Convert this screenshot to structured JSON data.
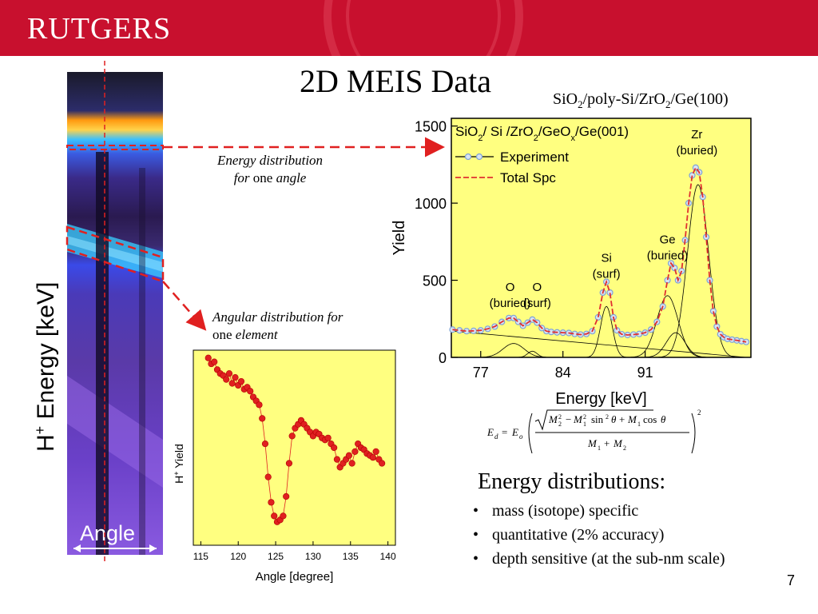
{
  "header": {
    "logo_text": "RUTGERS",
    "brand_color": "#c8102e"
  },
  "slide": {
    "title": "2D MEIS Data",
    "structure_parts": [
      "SiO",
      "2",
      "/poly-Si/ZrO",
      "2",
      "/Ge(100)"
    ],
    "page_number": "7"
  },
  "spectrum_image": {
    "ylabel_main": "H",
    "ylabel_sup": "+",
    "ylabel_rest": " Energy [keV]",
    "xlabel": "Angle"
  },
  "annotations": {
    "energy_line1": "Energy distribution",
    "energy_line2a": "for",
    "energy_line2b": " one ",
    "energy_line2c": "angle",
    "angular_line1": "Angular distribution for",
    "angular_line2a": "one ",
    "angular_line2b": "element"
  },
  "formula": {
    "lhs_sub": "d",
    "eo_sub": "o"
  },
  "energy_section": {
    "heading": "Energy distributions:",
    "bullets": [
      "mass (isotope) specific",
      "quantitative (2% accuracy)",
      "depth sensitive (at the sub-nm scale)"
    ]
  },
  "chart_data": [
    {
      "type": "line",
      "title_parts": [
        "SiO",
        "2",
        "/ Si /ZrO",
        "2",
        "/GeO",
        "x",
        "/Ge(001)"
      ],
      "xlabel": "Energy [keV]",
      "ylabel": "Yield",
      "xlim": [
        74.5,
        100
      ],
      "ylim": [
        0,
        1550
      ],
      "xticks": [
        77,
        84,
        91
      ],
      "yticks": [
        0,
        500,
        1000,
        1500
      ],
      "background": "#ffff80",
      "legend": {
        "position": "top-left",
        "entries": [
          "Experiment",
          "Total Spc"
        ]
      },
      "series": [
        {
          "name": "Experiment",
          "color": "#7fa3d6",
          "x": [
            74.6,
            75.2,
            75.8,
            76.4,
            77.0,
            77.6,
            78.2,
            78.8,
            79.4,
            79.8,
            80.2,
            80.6,
            81.0,
            81.4,
            81.8,
            82.2,
            82.6,
            83.0,
            83.5,
            84.0,
            84.5,
            85.0,
            85.5,
            86.0,
            86.5,
            87.0,
            87.4,
            87.7,
            88.0,
            88.3,
            88.6,
            89.0,
            89.5,
            90.0,
            90.5,
            91.0,
            91.5,
            92.0,
            92.5,
            92.9,
            93.2,
            93.5,
            93.8,
            94.1,
            94.4,
            94.7,
            95.0,
            95.3,
            95.6,
            95.9,
            96.2,
            96.5,
            96.8,
            97.1,
            97.4,
            97.7,
            98.0,
            98.4,
            98.8,
            99.2,
            99.6
          ],
          "y": [
            180,
            175,
            170,
            172,
            175,
            185,
            200,
            230,
            255,
            255,
            230,
            205,
            225,
            245,
            225,
            190,
            170,
            165,
            162,
            160,
            158,
            152,
            148,
            152,
            170,
            260,
            420,
            490,
            420,
            260,
            175,
            150,
            145,
            148,
            152,
            160,
            180,
            230,
            330,
            500,
            610,
            580,
            500,
            560,
            760,
            1000,
            1180,
            1230,
            1200,
            1040,
            780,
            500,
            300,
            200,
            150,
            130,
            120,
            115,
            110,
            105,
            100
          ]
        },
        {
          "name": "Total Spc",
          "color": "#e03030",
          "x": [
            74.6,
            75.2,
            75.8,
            76.4,
            77.0,
            77.6,
            78.2,
            78.8,
            79.4,
            79.8,
            80.2,
            80.6,
            81.0,
            81.4,
            81.8,
            82.2,
            82.6,
            83.0,
            83.5,
            84.0,
            84.5,
            85.0,
            85.5,
            86.0,
            86.5,
            87.0,
            87.4,
            87.7,
            88.0,
            88.3,
            88.6,
            89.0,
            89.5,
            90.0,
            90.5,
            91.0,
            91.5,
            92.0,
            92.5,
            92.9,
            93.2,
            93.5,
            93.8,
            94.1,
            94.4,
            94.7,
            95.0,
            95.3,
            95.6,
            95.9,
            96.2,
            96.5,
            96.8,
            97.1,
            97.4,
            97.7,
            98.0,
            98.4,
            98.8,
            99.2,
            99.6
          ],
          "y": [
            180,
            175,
            170,
            172,
            175,
            185,
            200,
            230,
            255,
            255,
            230,
            205,
            225,
            245,
            225,
            190,
            170,
            165,
            162,
            160,
            158,
            152,
            148,
            152,
            170,
            260,
            420,
            490,
            420,
            260,
            175,
            150,
            145,
            148,
            152,
            160,
            180,
            230,
            330,
            500,
            610,
            580,
            500,
            560,
            760,
            1000,
            1180,
            1230,
            1200,
            1040,
            780,
            500,
            300,
            200,
            150,
            130,
            120,
            115,
            110,
            105,
            100
          ]
        }
      ],
      "peak_labels": [
        {
          "lines": [
            "O",
            "(buried)"
          ],
          "x": 79.5,
          "y": 430
        },
        {
          "lines": [
            "O",
            "(surf)"
          ],
          "x": 81.8,
          "y": 430
        },
        {
          "lines": [
            "Si",
            "(surf)"
          ],
          "x": 87.7,
          "y": 620
        },
        {
          "lines": [
            "Ge",
            "(buried)"
          ],
          "x": 92.9,
          "y": 740
        },
        {
          "lines": [
            "Zr",
            "(buried)"
          ],
          "x": 95.4,
          "y": 1420
        }
      ]
    },
    {
      "type": "scatter",
      "xlabel": "Angle [degree]",
      "ylabel_main": "H",
      "ylabel_sup": "+",
      "ylabel_rest": " Yield",
      "xlim": [
        114,
        141
      ],
      "ylim": [
        0,
        1
      ],
      "xticks": [
        115,
        120,
        125,
        130,
        135,
        140
      ],
      "background": "#ffff80",
      "series": [
        {
          "name": "",
          "color": "#e02020",
          "x": [
            116.0,
            116.4,
            116.8,
            117.2,
            117.6,
            118.0,
            118.4,
            118.8,
            119.2,
            119.6,
            120.0,
            120.4,
            120.8,
            121.2,
            121.6,
            122.0,
            122.4,
            122.8,
            123.2,
            123.6,
            124.0,
            124.4,
            124.8,
            125.2,
            125.6,
            126.0,
            126.4,
            126.8,
            127.2,
            127.6,
            128.0,
            128.4,
            128.8,
            129.2,
            129.6,
            130.0,
            130.4,
            130.8,
            131.2,
            131.6,
            132.0,
            132.4,
            132.8,
            133.2,
            133.6,
            134.0,
            134.4,
            134.8,
            135.2,
            135.6,
            136.0,
            136.4,
            136.8,
            137.2,
            137.6,
            138.0,
            138.4,
            138.8,
            139.2
          ],
          "y": [
            0.96,
            0.93,
            0.94,
            0.9,
            0.88,
            0.87,
            0.85,
            0.88,
            0.83,
            0.86,
            0.82,
            0.84,
            0.8,
            0.81,
            0.79,
            0.76,
            0.74,
            0.72,
            0.65,
            0.52,
            0.35,
            0.22,
            0.15,
            0.12,
            0.13,
            0.15,
            0.25,
            0.42,
            0.56,
            0.6,
            0.62,
            0.64,
            0.62,
            0.6,
            0.58,
            0.56,
            0.58,
            0.57,
            0.55,
            0.54,
            0.55,
            0.52,
            0.5,
            0.44,
            0.4,
            0.42,
            0.44,
            0.46,
            0.42,
            0.48,
            0.52,
            0.5,
            0.49,
            0.47,
            0.46,
            0.45,
            0.48,
            0.44,
            0.42
          ]
        }
      ]
    }
  ]
}
